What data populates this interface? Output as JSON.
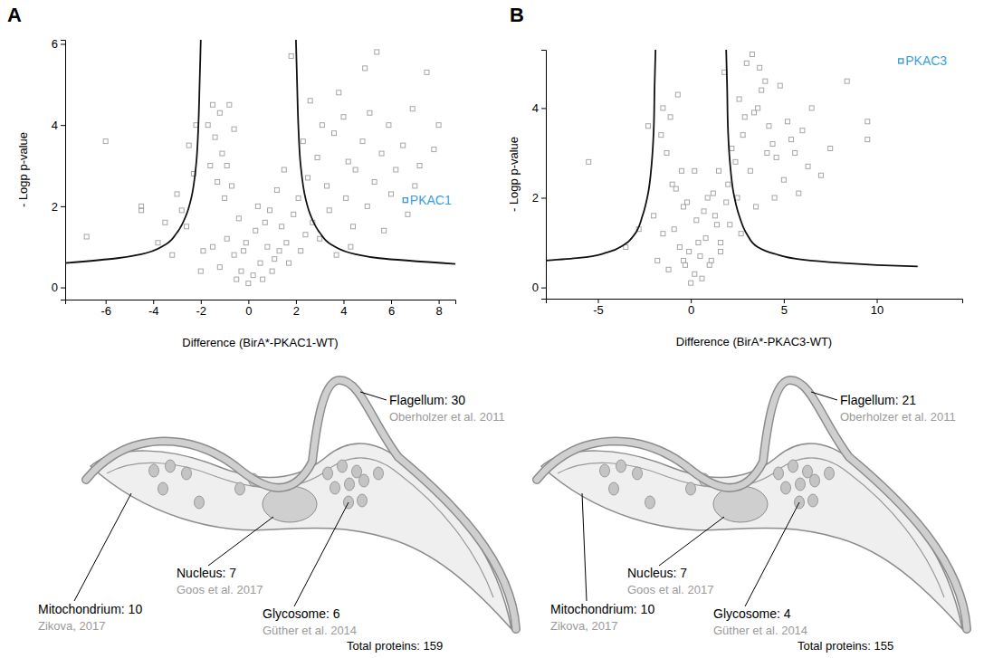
{
  "chart_data": [
    {
      "panel": "A",
      "type": "scatter",
      "x_label": "Difference (BirA*-PKAC1-WT)",
      "y_label": "- Logp p-value",
      "xlim": [
        -7.7,
        8.7
      ],
      "ylim": [
        -0.3,
        6.1
      ],
      "xticks": [
        -6,
        -4,
        -2,
        0,
        2,
        4,
        6,
        8
      ],
      "yticks": [
        0,
        2,
        4,
        6
      ],
      "series": [
        {
          "color": "#a6a6a6",
          "marker": "square",
          "x": [
            0,
            0.2,
            -0.3,
            0.5,
            -0.6,
            0.8,
            -0.9,
            1.1,
            -1.2,
            0.3,
            -0.4,
            1.4,
            1.6,
            -1.5,
            0.9,
            -1.0,
            -1.3,
            -1.6,
            -1.1,
            -1.4,
            -1.7,
            -1.2,
            -0.8,
            -1.5,
            -0.6,
            -2.2,
            -2.5,
            -3.0,
            -3.5,
            -4.5,
            -4.5,
            -6.0,
            -6.8,
            -3.8,
            -2.8,
            -2.3,
            -2.6,
            -1.9,
            -2.0,
            -3.2,
            2.1,
            2.5,
            2.9,
            3.3,
            3.6,
            4.0,
            4.2,
            4.5,
            4.8,
            5.1,
            5.3,
            5.6,
            5.9,
            6.2,
            6.5,
            6.9,
            7.2,
            7.5,
            7.8,
            8.0,
            5.4,
            4.9,
            3.8,
            1.8,
            2.6,
            3.1,
            2.3,
            1.5,
            1.2,
            1.9,
            2.7,
            3.4,
            4.1,
            4.4,
            3.0,
            2.2,
            1.7,
            5.0,
            6.0,
            7.0,
            0.6,
            -0.2,
            0.4,
            -0.7,
            1.0,
            -0.5,
            1.3,
            0.7,
            -0.1,
            2.4,
            3.7,
            4.3,
            -0.9,
            6.7,
            5.7
          ],
          "values": [
            0.1,
            0.3,
            0.4,
            0.6,
            0.8,
            1.0,
            1.2,
            0.7,
            0.5,
            1.4,
            1.7,
            1.5,
            1.1,
            1.0,
            1.9,
            2.2,
            2.6,
            3.0,
            3.3,
            3.7,
            4.0,
            4.3,
            4.5,
            4.5,
            3.9,
            4.0,
            3.5,
            2.3,
            1.6,
            2.0,
            1.9,
            3.6,
            1.25,
            1.1,
            1.9,
            2.8,
            1.5,
            0.9,
            0.4,
            0.8,
            2.2,
            2.7,
            3.2,
            2.5,
            3.8,
            4.2,
            3.1,
            2.9,
            3.6,
            4.3,
            2.6,
            3.3,
            4.0,
            2.9,
            3.5,
            4.4,
            3.0,
            5.3,
            3.4,
            4.0,
            5.8,
            5.4,
            4.8,
            5.7,
            4.6,
            4.0,
            3.6,
            2.9,
            2.4,
            1.8,
            1.6,
            1.9,
            2.2,
            1.5,
            1.2,
            0.9,
            0.6,
            2.0,
            2.3,
            2.5,
            0.2,
            0.9,
            2.0,
            2.5,
            0.4,
            0.2,
            0.9,
            1.6,
            1.1,
            1.3,
            0.8,
            1.0,
            3.0,
            1.8,
            1.4
          ]
        },
        {
          "name": "PKAC1",
          "color": "#3a9fd8",
          "marker": "square",
          "x": [
            6.6
          ],
          "values": [
            2.15
          ]
        },
        {
          "type": "line",
          "color": "#111111",
          "line_style": "solid",
          "x": [
            -2.0,
            -2.05,
            -2.1,
            -2.2,
            -2.4,
            -2.6,
            -3.0,
            -3.5,
            -4.5,
            -5.5,
            -7.7
          ],
          "values": [
            6.1,
            5.0,
            4.0,
            3.0,
            2.2,
            1.8,
            1.35,
            1.05,
            0.82,
            0.72,
            0.6
          ]
        },
        {
          "type": "line",
          "color": "#111111",
          "line_style": "solid",
          "x": [
            2.0,
            2.05,
            2.1,
            2.2,
            2.4,
            2.6,
            3.0,
            3.5,
            4.5,
            5.5,
            8.7
          ],
          "values": [
            6.1,
            5.0,
            4.0,
            3.0,
            2.2,
            1.8,
            1.35,
            1.05,
            0.82,
            0.72,
            0.58
          ]
        }
      ]
    },
    {
      "panel": "B",
      "type": "scatter",
      "x_label": "Difference (BirA*-PKAC3-WT)",
      "y_label": "- Logp p-value",
      "xlim": [
        -7.8,
        14.6
      ],
      "ylim": [
        -0.25,
        5.3
      ],
      "xticks": [
        -5,
        0,
        5,
        10
      ],
      "yticks": [
        0,
        2,
        4
      ],
      "series": [
        {
          "color": "#a6a6a6",
          "marker": "square",
          "x": [
            0,
            0.2,
            -0.3,
            0.5,
            -0.6,
            0.8,
            -0.9,
            1.1,
            -1.2,
            0.3,
            -0.4,
            1.4,
            1.6,
            -1.5,
            0.9,
            -1.0,
            -1.3,
            -1.6,
            -1.1,
            -0.7,
            -0.5,
            -1.5,
            -2.3,
            -5.5,
            -2.8,
            -3.5,
            -2.0,
            -1.8,
            -0.8,
            -0.2,
            2.0,
            2.4,
            2.8,
            3.2,
            3.6,
            4.0,
            4.4,
            4.8,
            5.2,
            5.6,
            6.0,
            6.5,
            7.0,
            7.5,
            8.4,
            9.5,
            9.5,
            1.8,
            2.6,
            3.0,
            3.4,
            3.8,
            4.2,
            4.6,
            5.0,
            5.4,
            5.8,
            2.2,
            2.9,
            3.3,
            3.7,
            4.1,
            1.5,
            1.2,
            1.9,
            2.5,
            0.6,
            -0.1,
            0.4,
            1.0,
            0.7,
            1.3,
            2.1,
            3.5,
            4.5,
            6.3,
            2.7,
            1.6,
            -0.4,
            0.2
          ],
          "values": [
            0.1,
            0.3,
            0.5,
            0.7,
            0.9,
            1.1,
            1.3,
            0.6,
            0.4,
            1.5,
            1.8,
            1.4,
            1.0,
            1.2,
            2.0,
            2.3,
            3.0,
            3.4,
            3.8,
            4.3,
            2.6,
            4.0,
            3.6,
            2.8,
            1.3,
            0.9,
            1.6,
            0.6,
            2.2,
            1.9,
            2.3,
            2.8,
            3.4,
            2.6,
            4.0,
            4.6,
            3.2,
            4.5,
            3.7,
            3.0,
            3.5,
            4.0,
            2.5,
            3.1,
            4.6,
            3.7,
            3.3,
            4.8,
            4.2,
            5.0,
            3.9,
            4.4,
            3.6,
            2.9,
            2.4,
            3.3,
            2.1,
            3.1,
            3.8,
            5.2,
            4.9,
            3.0,
            2.6,
            2.1,
            1.9,
            2.0,
            0.2,
            0.8,
            1.0,
            0.5,
            1.7,
            1.6,
            1.4,
            1.8,
            2.0,
            2.7,
            1.2,
            0.8,
            0.6,
            2.6
          ]
        },
        {
          "name": "PKAC3",
          "color": "#3a9fd8",
          "marker": "square",
          "x": [
            11.3
          ],
          "values": [
            5.05
          ]
        },
        {
          "type": "line",
          "color": "#111111",
          "line_style": "solid",
          "x": [
            -1.9,
            -1.95,
            -2.0,
            -2.1,
            -2.3,
            -2.6,
            -3.0,
            -3.6,
            -4.5,
            -6.0,
            -7.8
          ],
          "values": [
            5.3,
            4.5,
            3.5,
            2.8,
            2.1,
            1.6,
            1.2,
            0.95,
            0.78,
            0.66,
            0.6
          ]
        },
        {
          "type": "line",
          "color": "#111111",
          "line_style": "solid",
          "x": [
            1.9,
            1.95,
            2.0,
            2.1,
            2.3,
            2.6,
            3.0,
            3.6,
            4.5,
            6.0,
            8.0,
            10.0,
            12.2
          ],
          "values": [
            5.3,
            4.5,
            3.5,
            2.8,
            2.1,
            1.6,
            1.2,
            0.9,
            0.75,
            0.62,
            0.55,
            0.5,
            0.47
          ]
        }
      ]
    }
  ],
  "diagrams": [
    {
      "labels": [
        {
          "text": "Flagellum: 30",
          "source": "Oberholzer et al. 2011"
        },
        {
          "text": "Nucleus: 7",
          "source": "Goos et al. 2017"
        },
        {
          "text": "Glycosome: 6",
          "source": "Güther et al. 2014"
        },
        {
          "text": "Mitochondrium: 10",
          "source": "Zikova, 2017"
        }
      ],
      "total": "Total proteins: 159"
    },
    {
      "labels": [
        {
          "text": "Flagellum: 21",
          "source": "Oberholzer et al. 2011"
        },
        {
          "text": "Nucleus: 7",
          "source": "Goos et al. 2017"
        },
        {
          "text": "Glycosome: 4",
          "source": "Güther et al. 2014"
        },
        {
          "text": "Mitochondrium: 10",
          "source": "Zikova, 2017"
        }
      ],
      "total": "Total proteins: 155"
    }
  ]
}
